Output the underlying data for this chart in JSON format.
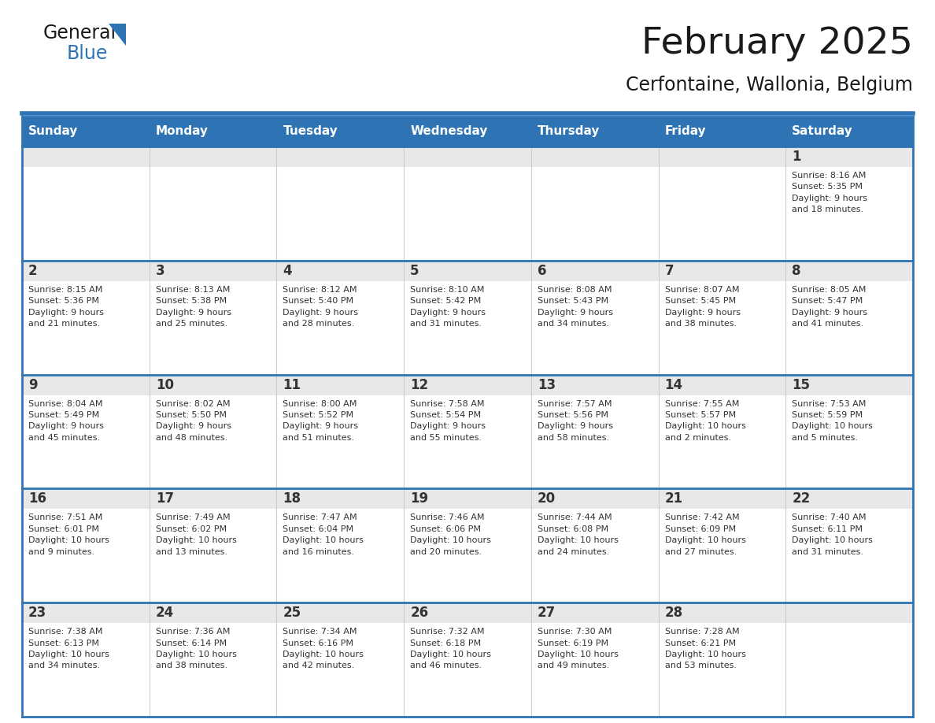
{
  "title": "February 2025",
  "subtitle": "Cerfontaine, Wallonia, Belgium",
  "days_of_week": [
    "Sunday",
    "Monday",
    "Tuesday",
    "Wednesday",
    "Thursday",
    "Friday",
    "Saturday"
  ],
  "header_bg": "#2E74B5",
  "header_text": "#FFFFFF",
  "cell_bg_top": "#E8E8E8",
  "cell_bg_white": "#FFFFFF",
  "border_color": "#2E74B5",
  "row_border_color": "#2E74B5",
  "day_number_color": "#333333",
  "info_text_color": "#333333",
  "title_color": "#1A1A1A",
  "subtitle_color": "#1A1A1A",
  "logo_general_color": "#1A1A1A",
  "logo_blue_color": "#2E74B5",
  "figsize": [
    11.88,
    9.18
  ],
  "dpi": 100,
  "calendar_data": [
    [
      {
        "day": null,
        "info": ""
      },
      {
        "day": null,
        "info": ""
      },
      {
        "day": null,
        "info": ""
      },
      {
        "day": null,
        "info": ""
      },
      {
        "day": null,
        "info": ""
      },
      {
        "day": null,
        "info": ""
      },
      {
        "day": 1,
        "info": "Sunrise: 8:16 AM\nSunset: 5:35 PM\nDaylight: 9 hours\nand 18 minutes."
      }
    ],
    [
      {
        "day": 2,
        "info": "Sunrise: 8:15 AM\nSunset: 5:36 PM\nDaylight: 9 hours\nand 21 minutes."
      },
      {
        "day": 3,
        "info": "Sunrise: 8:13 AM\nSunset: 5:38 PM\nDaylight: 9 hours\nand 25 minutes."
      },
      {
        "day": 4,
        "info": "Sunrise: 8:12 AM\nSunset: 5:40 PM\nDaylight: 9 hours\nand 28 minutes."
      },
      {
        "day": 5,
        "info": "Sunrise: 8:10 AM\nSunset: 5:42 PM\nDaylight: 9 hours\nand 31 minutes."
      },
      {
        "day": 6,
        "info": "Sunrise: 8:08 AM\nSunset: 5:43 PM\nDaylight: 9 hours\nand 34 minutes."
      },
      {
        "day": 7,
        "info": "Sunrise: 8:07 AM\nSunset: 5:45 PM\nDaylight: 9 hours\nand 38 minutes."
      },
      {
        "day": 8,
        "info": "Sunrise: 8:05 AM\nSunset: 5:47 PM\nDaylight: 9 hours\nand 41 minutes."
      }
    ],
    [
      {
        "day": 9,
        "info": "Sunrise: 8:04 AM\nSunset: 5:49 PM\nDaylight: 9 hours\nand 45 minutes."
      },
      {
        "day": 10,
        "info": "Sunrise: 8:02 AM\nSunset: 5:50 PM\nDaylight: 9 hours\nand 48 minutes."
      },
      {
        "day": 11,
        "info": "Sunrise: 8:00 AM\nSunset: 5:52 PM\nDaylight: 9 hours\nand 51 minutes."
      },
      {
        "day": 12,
        "info": "Sunrise: 7:58 AM\nSunset: 5:54 PM\nDaylight: 9 hours\nand 55 minutes."
      },
      {
        "day": 13,
        "info": "Sunrise: 7:57 AM\nSunset: 5:56 PM\nDaylight: 9 hours\nand 58 minutes."
      },
      {
        "day": 14,
        "info": "Sunrise: 7:55 AM\nSunset: 5:57 PM\nDaylight: 10 hours\nand 2 minutes."
      },
      {
        "day": 15,
        "info": "Sunrise: 7:53 AM\nSunset: 5:59 PM\nDaylight: 10 hours\nand 5 minutes."
      }
    ],
    [
      {
        "day": 16,
        "info": "Sunrise: 7:51 AM\nSunset: 6:01 PM\nDaylight: 10 hours\nand 9 minutes."
      },
      {
        "day": 17,
        "info": "Sunrise: 7:49 AM\nSunset: 6:02 PM\nDaylight: 10 hours\nand 13 minutes."
      },
      {
        "day": 18,
        "info": "Sunrise: 7:47 AM\nSunset: 6:04 PM\nDaylight: 10 hours\nand 16 minutes."
      },
      {
        "day": 19,
        "info": "Sunrise: 7:46 AM\nSunset: 6:06 PM\nDaylight: 10 hours\nand 20 minutes."
      },
      {
        "day": 20,
        "info": "Sunrise: 7:44 AM\nSunset: 6:08 PM\nDaylight: 10 hours\nand 24 minutes."
      },
      {
        "day": 21,
        "info": "Sunrise: 7:42 AM\nSunset: 6:09 PM\nDaylight: 10 hours\nand 27 minutes."
      },
      {
        "day": 22,
        "info": "Sunrise: 7:40 AM\nSunset: 6:11 PM\nDaylight: 10 hours\nand 31 minutes."
      }
    ],
    [
      {
        "day": 23,
        "info": "Sunrise: 7:38 AM\nSunset: 6:13 PM\nDaylight: 10 hours\nand 34 minutes."
      },
      {
        "day": 24,
        "info": "Sunrise: 7:36 AM\nSunset: 6:14 PM\nDaylight: 10 hours\nand 38 minutes."
      },
      {
        "day": 25,
        "info": "Sunrise: 7:34 AM\nSunset: 6:16 PM\nDaylight: 10 hours\nand 42 minutes."
      },
      {
        "day": 26,
        "info": "Sunrise: 7:32 AM\nSunset: 6:18 PM\nDaylight: 10 hours\nand 46 minutes."
      },
      {
        "day": 27,
        "info": "Sunrise: 7:30 AM\nSunset: 6:19 PM\nDaylight: 10 hours\nand 49 minutes."
      },
      {
        "day": 28,
        "info": "Sunrise: 7:28 AM\nSunset: 6:21 PM\nDaylight: 10 hours\nand 53 minutes."
      },
      {
        "day": null,
        "info": ""
      }
    ]
  ]
}
